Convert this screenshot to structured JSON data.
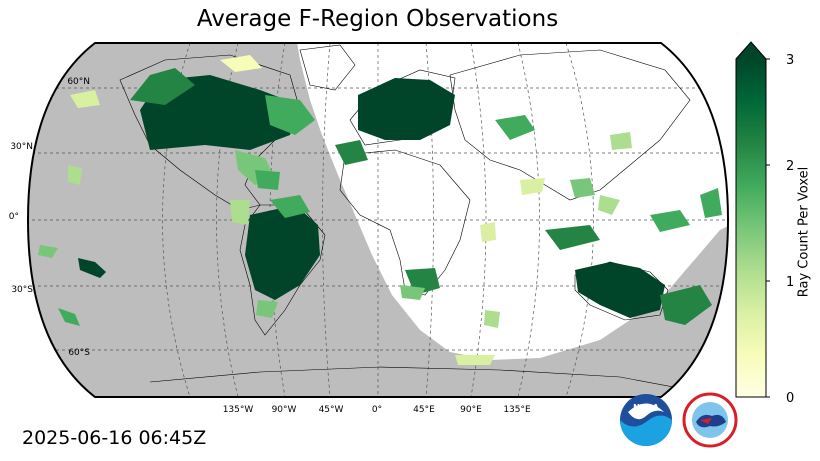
{
  "title": "Average F-Region Observations",
  "timestamp": "2025-06-16 06:45Z",
  "colorbar": {
    "label": "Ray Count Per Voxel",
    "ticks": [
      "0",
      "1",
      "2",
      "3"
    ],
    "min": 0,
    "max": 3,
    "extend": "max",
    "colormap": "YlGn",
    "colors": [
      "#ffffe5",
      "#f7fcb9",
      "#d9f0a3",
      "#addd8e",
      "#78c679",
      "#41ab5d",
      "#238443",
      "#006837",
      "#004529"
    ]
  },
  "map": {
    "projection": "Robinson",
    "lat_labels": [
      "60°N",
      "30°N",
      "0°",
      "30°S",
      "60°S"
    ],
    "lon_labels": [
      "135°W",
      "90°W",
      "45°W",
      "0°",
      "45°E",
      "90°E",
      "135°E"
    ],
    "night_color": "#bdbdbd",
    "gridlines": true
  },
  "logos": {
    "noaa": "NOAA",
    "nws": "NATIONAL WEATHER SERVICE"
  }
}
